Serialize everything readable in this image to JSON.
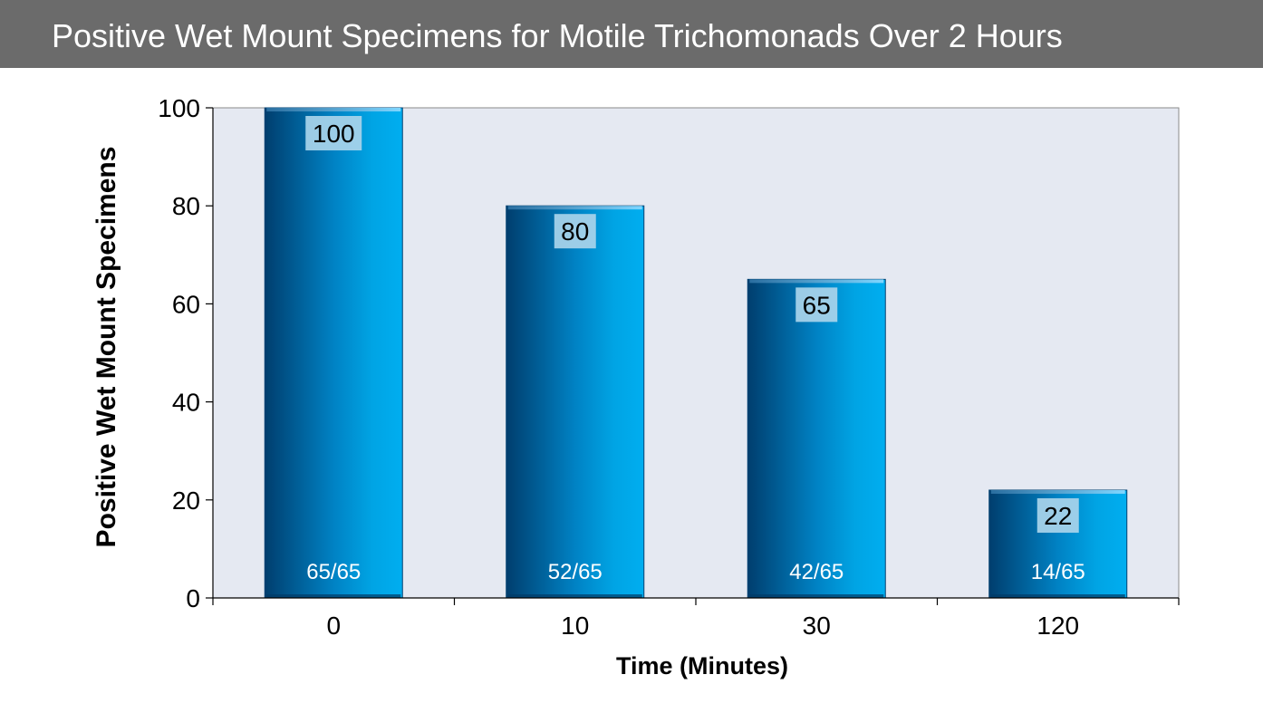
{
  "header": {
    "title": "Positive Wet Mount Specimens for Motile Trichomonads Over 2 Hours"
  },
  "colors": {
    "title_bar": "#6b6b6b",
    "plot_background": "#e5e9f2",
    "bar_dark": "#004a80",
    "bar_light": "#00a8e8",
    "value_label_box": "#a9d4ea"
  },
  "chart_data": {
    "type": "bar",
    "title": "Positive Wet Mount Specimens for Motile Trichomonads Over 2 Hours",
    "xlabel": "Time (Minutes)",
    "ylabel": "Positive Wet Mount Specimens",
    "categories": [
      "0",
      "10",
      "30",
      "120"
    ],
    "values": [
      100,
      80,
      65,
      22
    ],
    "fraction_labels": [
      "65/65",
      "52/65",
      "42/65",
      "14/65"
    ],
    "ylim": [
      0,
      100
    ],
    "yticks": [
      0,
      20,
      40,
      60,
      80,
      100
    ],
    "grid": false,
    "legend": "none"
  }
}
